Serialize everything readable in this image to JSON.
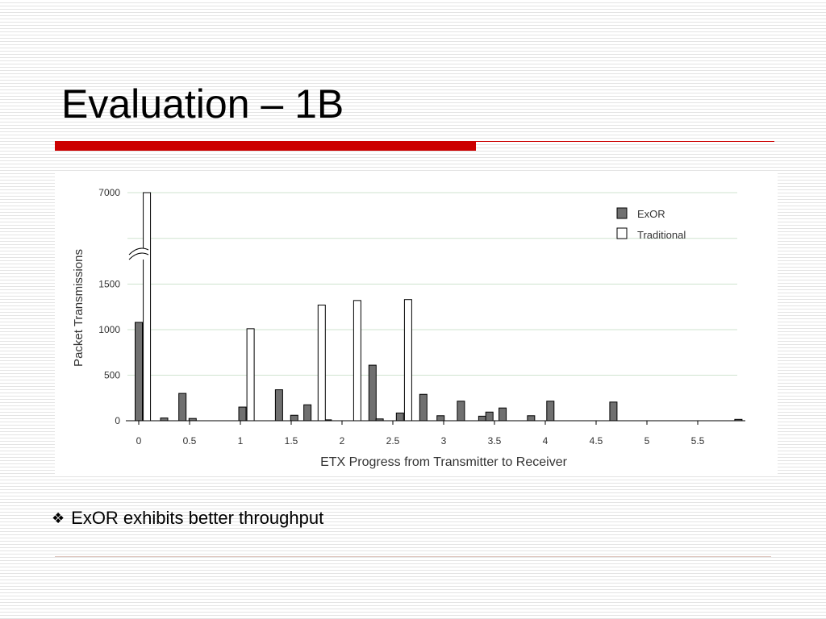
{
  "slide": {
    "title": "Evaluation – 1B",
    "bullet_text": "ExOR exhibits better throughput",
    "accent_color": "#cc0000"
  },
  "chart_data": {
    "type": "bar",
    "xlabel": "ETX Progress from Transmitter to Receiver",
    "ylabel": "Packet Transmissions",
    "ylim": [
      0,
      7000
    ],
    "y_axis_break": true,
    "yticks": [
      0,
      500,
      1000,
      1500,
      7000
    ],
    "xticks": [
      "0",
      "0.5",
      "1",
      "1.5",
      "2",
      "2.5",
      "3",
      "3.5",
      "4",
      "4.5",
      "5",
      "5.5"
    ],
    "grid": true,
    "legend_position": "top-right",
    "series": [
      {
        "name": "ExOR",
        "color": "#707070",
        "points": [
          {
            "x": 0.0,
            "y": 1080
          },
          {
            "x": 0.25,
            "y": 30
          },
          {
            "x": 0.43,
            "y": 300
          },
          {
            "x": 0.53,
            "y": 25
          },
          {
            "x": 1.02,
            "y": 150
          },
          {
            "x": 1.38,
            "y": 340
          },
          {
            "x": 1.53,
            "y": 60
          },
          {
            "x": 1.66,
            "y": 175
          },
          {
            "x": 1.86,
            "y": 10
          },
          {
            "x": 2.3,
            "y": 610
          },
          {
            "x": 2.37,
            "y": 20
          },
          {
            "x": 2.57,
            "y": 85
          },
          {
            "x": 2.8,
            "y": 290
          },
          {
            "x": 2.97,
            "y": 55
          },
          {
            "x": 3.17,
            "y": 215
          },
          {
            "x": 3.38,
            "y": 50
          },
          {
            "x": 3.45,
            "y": 95
          },
          {
            "x": 3.58,
            "y": 140
          },
          {
            "x": 3.86,
            "y": 55
          },
          {
            "x": 4.05,
            "y": 215
          },
          {
            "x": 4.67,
            "y": 205
          },
          {
            "x": 5.9,
            "y": 15
          }
        ]
      },
      {
        "name": "Traditional",
        "color": "#ffffff",
        "points": [
          {
            "x": 0.08,
            "y": 7000
          },
          {
            "x": 1.1,
            "y": 1010
          },
          {
            "x": 1.8,
            "y": 1270
          },
          {
            "x": 2.15,
            "y": 1320
          },
          {
            "x": 2.65,
            "y": 1330
          }
        ]
      }
    ]
  }
}
